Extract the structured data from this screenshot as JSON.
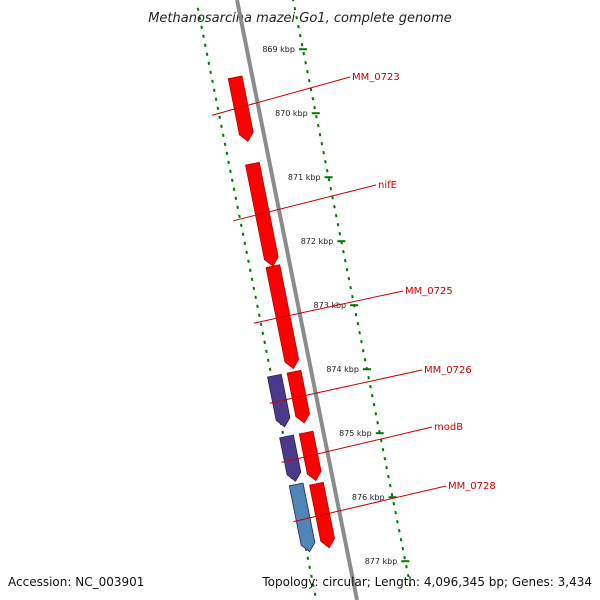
{
  "title": "Methanosarcina mazei Go1, complete genome",
  "footer": {
    "accession": "Accession: NC_003901",
    "summary": "Topology: circular; Length: 4,096,345 bp; Genes: 3,434"
  },
  "colors": {
    "forward_cds": "#ff0000",
    "purple_cds": "#4b3a8c",
    "blue_cds": "#4f86b8",
    "backbone": "#8c8c8c",
    "ticks": "#007700",
    "label": "#cc0000"
  },
  "kbp_ticks": [
    {
      "label": "869 kbp"
    },
    {
      "label": "870 kbp"
    },
    {
      "label": "871 kbp"
    },
    {
      "label": "872 kbp"
    },
    {
      "label": "873 kbp"
    },
    {
      "label": "874 kbp"
    },
    {
      "label": "875 kbp"
    },
    {
      "label": "876 kbp"
    },
    {
      "label": "877 kbp"
    }
  ],
  "genes": [
    {
      "name": "MM_0723",
      "start_kbp": 869.25,
      "end_kbp": 870.25,
      "strand": "+",
      "track": "forward",
      "color_key": "forward_cds"
    },
    {
      "name": "nifE",
      "start_kbp": 870.6,
      "end_kbp": 872.2,
      "strand": "+",
      "track": "forward",
      "color_key": "forward_cds"
    },
    {
      "name": "MM_0725",
      "start_kbp": 872.2,
      "end_kbp": 873.8,
      "strand": "+",
      "track": "forward",
      "color_key": "forward_cds"
    },
    {
      "name": "MM_0726",
      "start_kbp": 873.85,
      "end_kbp": 874.65,
      "strand": "+",
      "track": "forward",
      "color_key": "forward_cds"
    },
    {
      "name": "modB",
      "start_kbp": 874.8,
      "end_kbp": 875.55,
      "strand": "+",
      "track": "forward",
      "color_key": "forward_cds"
    },
    {
      "name": "MM_0728",
      "start_kbp": 875.6,
      "end_kbp": 876.6,
      "strand": "+",
      "track": "forward",
      "color_key": "forward_cds"
    }
  ],
  "extra_features": [
    {
      "start_kbp": 873.85,
      "end_kbp": 874.65,
      "strand": "+",
      "track": "outer",
      "color_key": "purple_cds"
    },
    {
      "start_kbp": 874.8,
      "end_kbp": 875.5,
      "strand": "+",
      "track": "outer",
      "color_key": "purple_cds"
    },
    {
      "start_kbp": 875.55,
      "end_kbp": 876.6,
      "strand": "+",
      "track": "outer",
      "color_key": "blue_cds"
    }
  ]
}
